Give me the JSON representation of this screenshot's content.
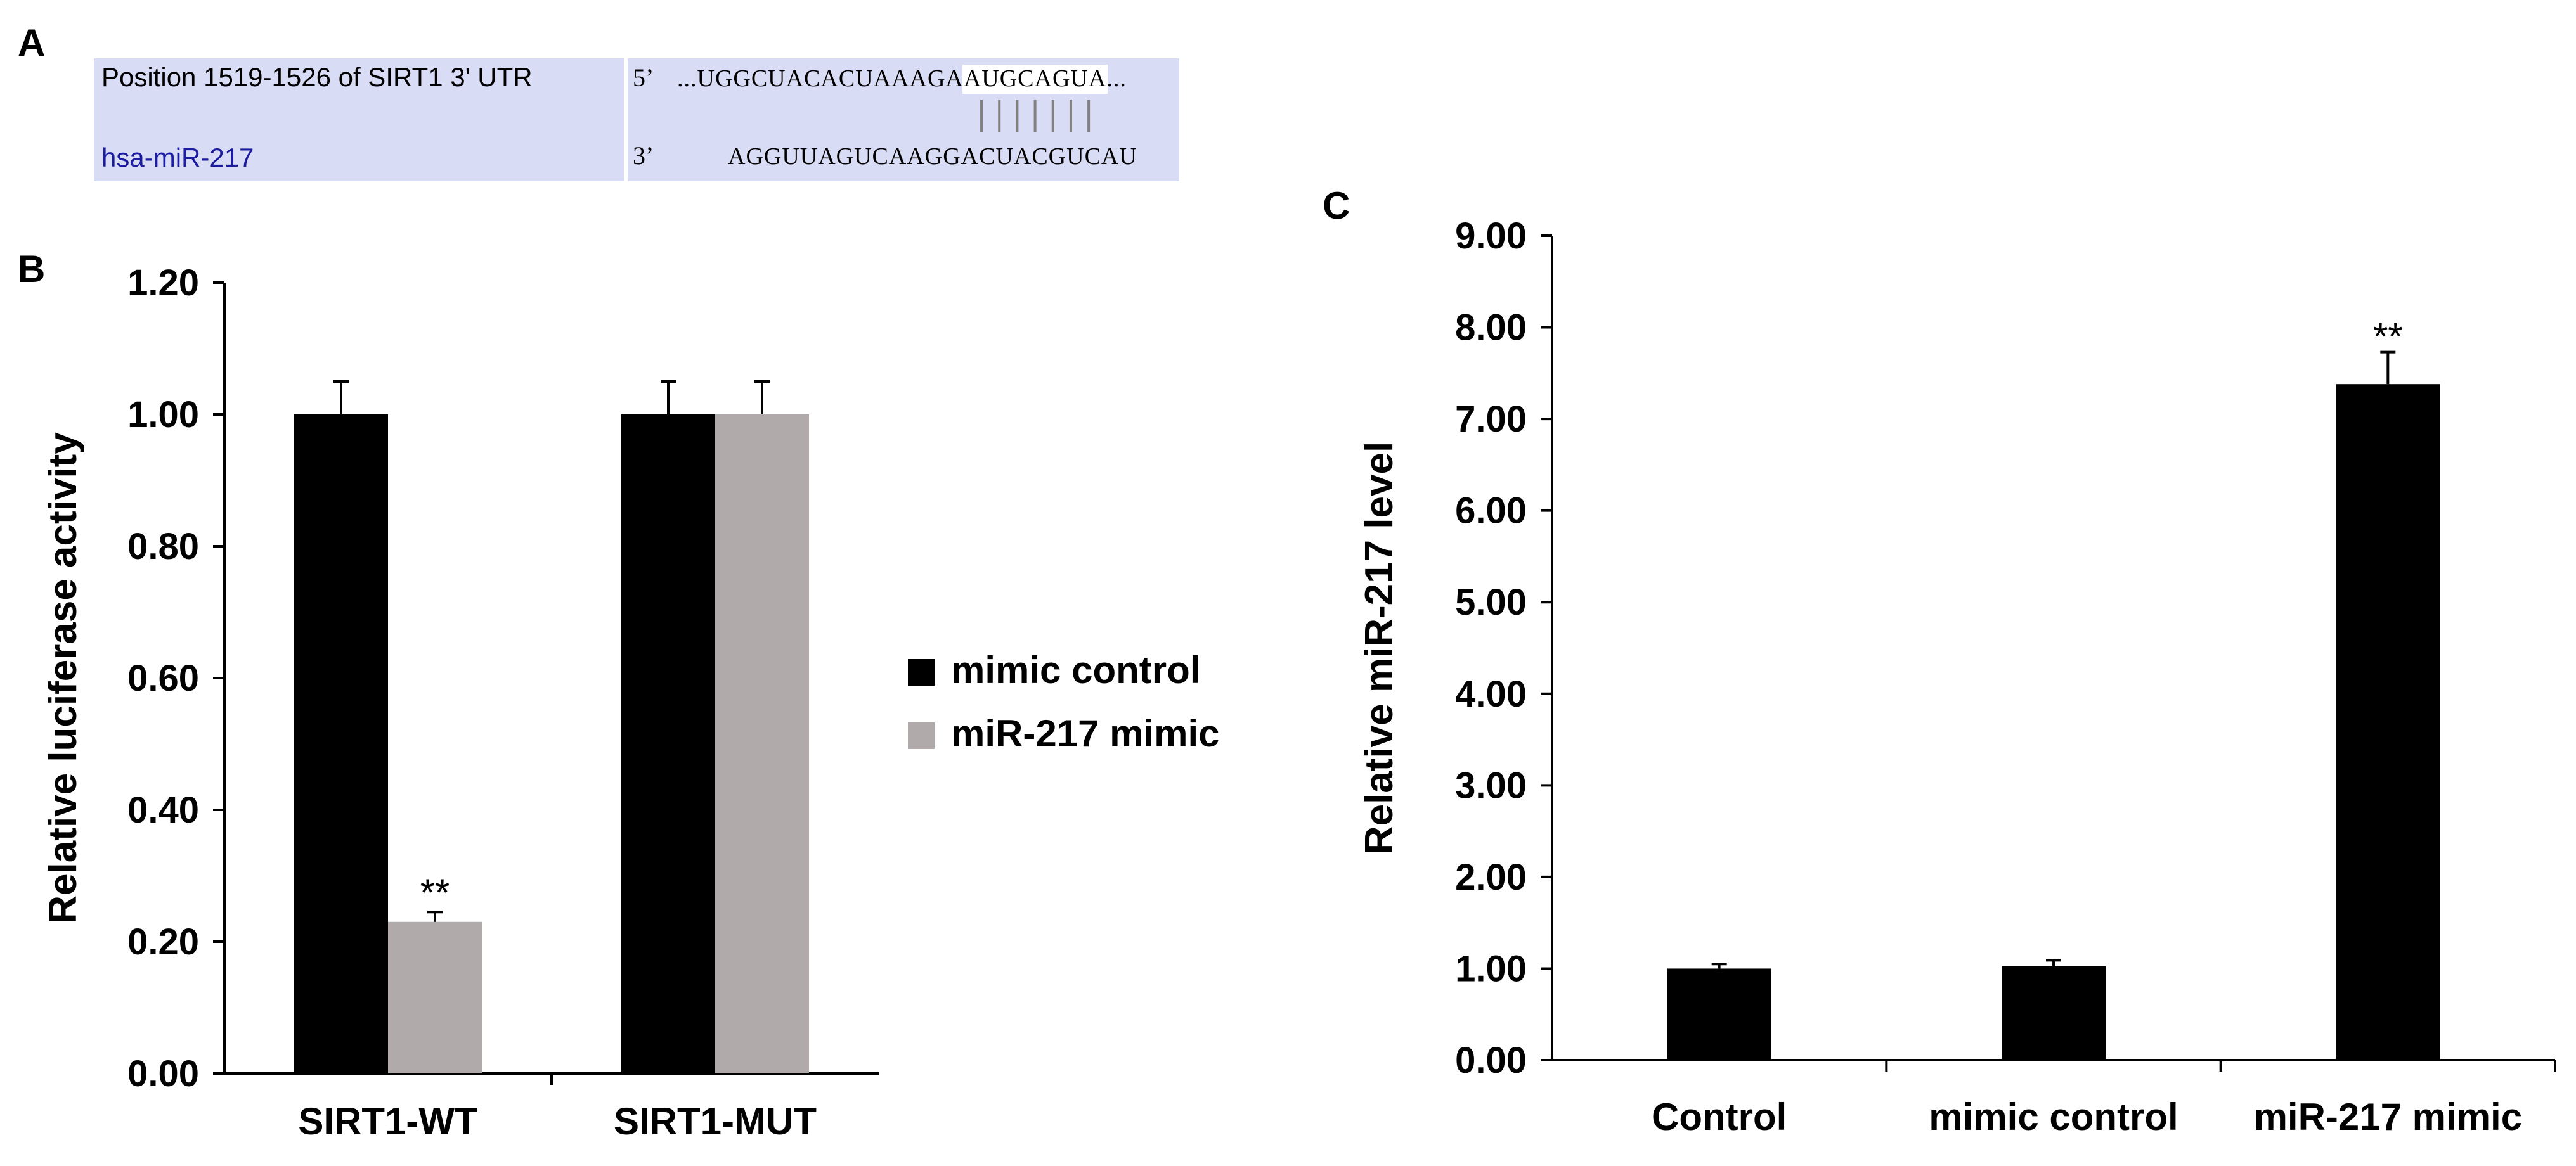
{
  "panel_a": {
    "label": "A",
    "row1_label": "Position 1519-1526 of SIRT1 3' UTR",
    "row2_label": "hsa-miR-217",
    "utr_end": "5’",
    "mir_end": "3’",
    "utr_seq_pre": "...UGGCUACACUAAAGA",
    "utr_seq_seed": "AUGCAGUA",
    "utr_seq_post": "...",
    "mir_seq_pre": "AGGUUAGUCAAGGAC",
    "mir_seq_seed": "UACGUCAU",
    "pair_count": 7,
    "colors": {
      "box": "#d9dcf5",
      "mir_label": "#1c1ca0",
      "text": "#000000"
    }
  },
  "chart_data": [
    {
      "panel": "B",
      "type": "bar",
      "categories": [
        "SIRT1-WT",
        "SIRT1-MUT"
      ],
      "series": [
        {
          "name": "mimic control",
          "values": [
            1.0,
            1.0
          ],
          "errors": [
            0.05,
            0.05
          ],
          "color": "#000000"
        },
        {
          "name": "miR-217 mimic",
          "values": [
            0.23,
            1.0
          ],
          "errors": [
            0.015,
            0.05
          ],
          "color": "#b0aaaa"
        }
      ],
      "annotations": [
        {
          "category": "SIRT1-WT",
          "series": "miR-217 mimic",
          "text": "**"
        }
      ],
      "ylabel": "Relative luciferase activity",
      "ylim": [
        0,
        1.2
      ],
      "yticks": [
        "0.00",
        "0.20",
        "0.40",
        "0.60",
        "0.80",
        "1.00",
        "1.20"
      ],
      "legend": "right",
      "grid": false
    },
    {
      "panel": "C",
      "type": "bar",
      "categories": [
        "Control",
        "mimic control",
        "miR-217 mimic"
      ],
      "series": [
        {
          "values": [
            1.0,
            1.03,
            7.38
          ],
          "errors": [
            0.05,
            0.06,
            0.35
          ],
          "color": "#000000"
        }
      ],
      "annotations": [
        {
          "category": "miR-217 mimic",
          "text": "**"
        }
      ],
      "ylabel": "Relative miR-217 level",
      "ylim": [
        0,
        9
      ],
      "yticks": [
        "0.00",
        "1.00",
        "2.00",
        "3.00",
        "4.00",
        "5.00",
        "6.00",
        "7.00",
        "8.00",
        "9.00"
      ],
      "grid": false
    }
  ]
}
